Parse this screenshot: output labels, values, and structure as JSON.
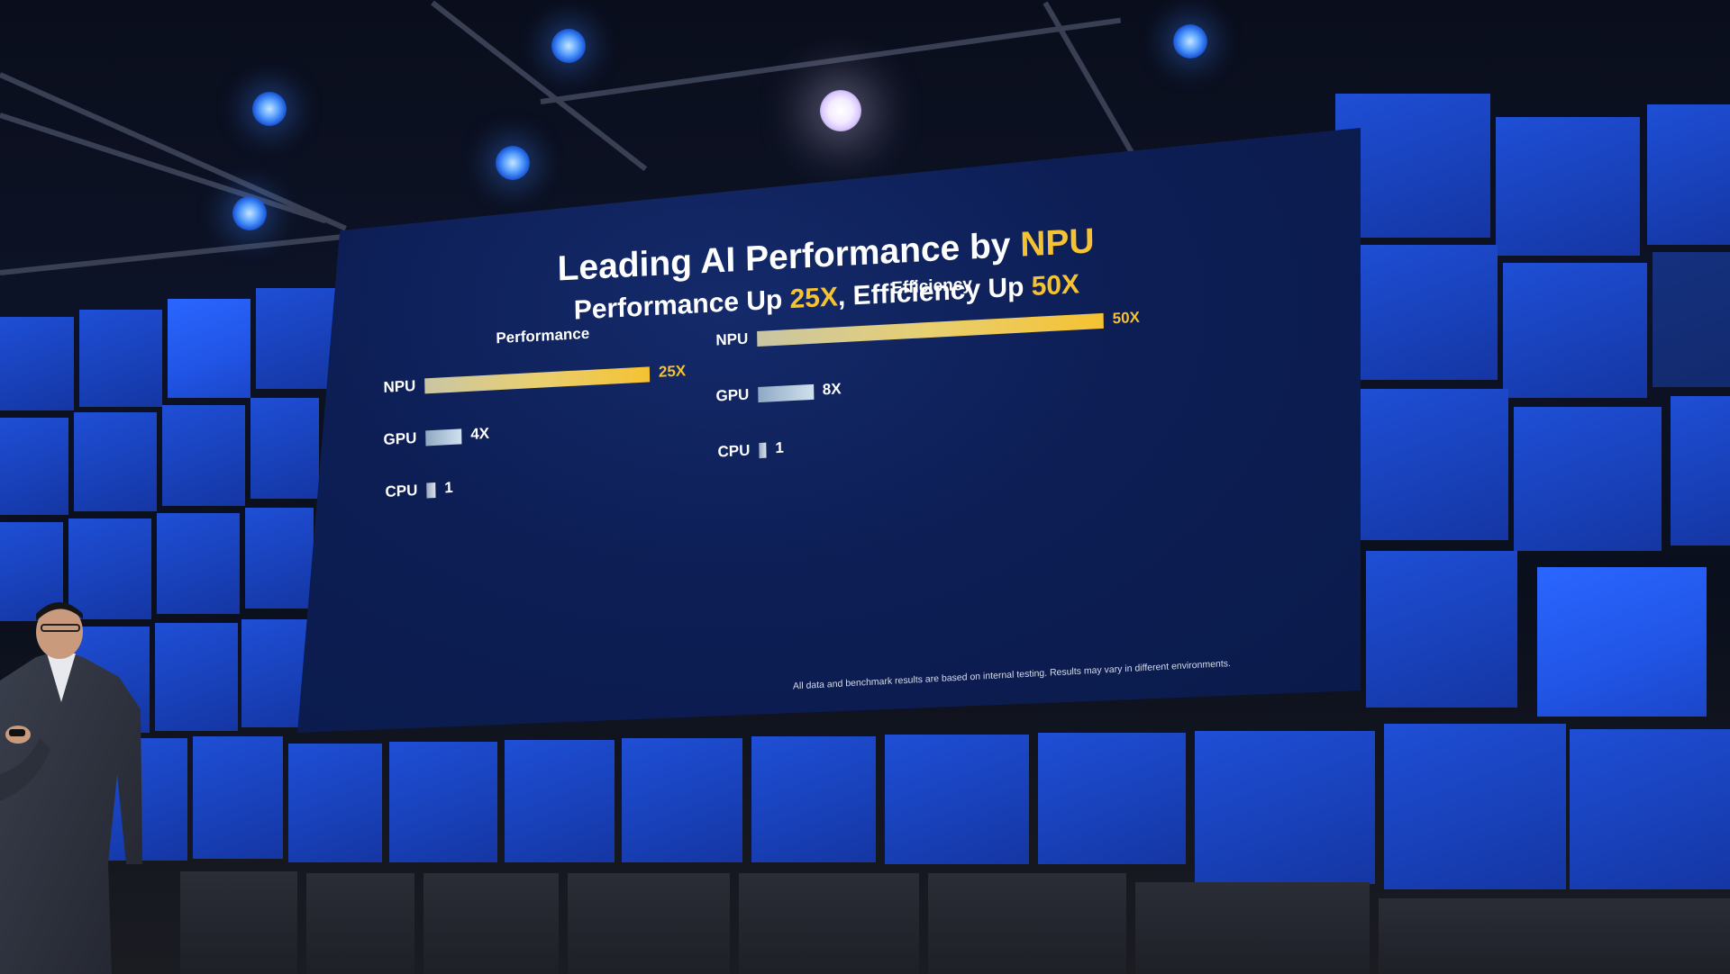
{
  "slide": {
    "title_part1": "Leading AI Performance by ",
    "title_accent": "NPU",
    "subtitle_part1": "Performance Up ",
    "subtitle_accent1": "25X",
    "subtitle_part2": ", Efficiency Up ",
    "subtitle_accent2": "50X",
    "footnote": "All data and benchmark results are based on internal testing. Results may vary in different environments."
  },
  "chart_data": [
    {
      "type": "bar",
      "orientation": "horizontal",
      "title": "Performance",
      "categories": [
        "NPU",
        "GPU",
        "CPU"
      ],
      "values": [
        25,
        4,
        1
      ],
      "value_labels": [
        "25X",
        "4X",
        "1"
      ],
      "colors": [
        "#f5c232",
        "#cfe1ee",
        "#d9e2ec"
      ]
    },
    {
      "type": "bar",
      "orientation": "horizontal",
      "title": "Efficiency",
      "categories": [
        "NPU",
        "GPU",
        "CPU"
      ],
      "values": [
        50,
        8,
        1
      ],
      "value_labels": [
        "50X",
        "8X",
        "1"
      ],
      "colors": [
        "#f5c232",
        "#cfe1ee",
        "#d9e2ec"
      ]
    }
  ],
  "colors": {
    "accent": "#f5c232",
    "slide_background": "#0d1e55",
    "led_wall": "#1f4fd6",
    "text": "#ffffff"
  }
}
